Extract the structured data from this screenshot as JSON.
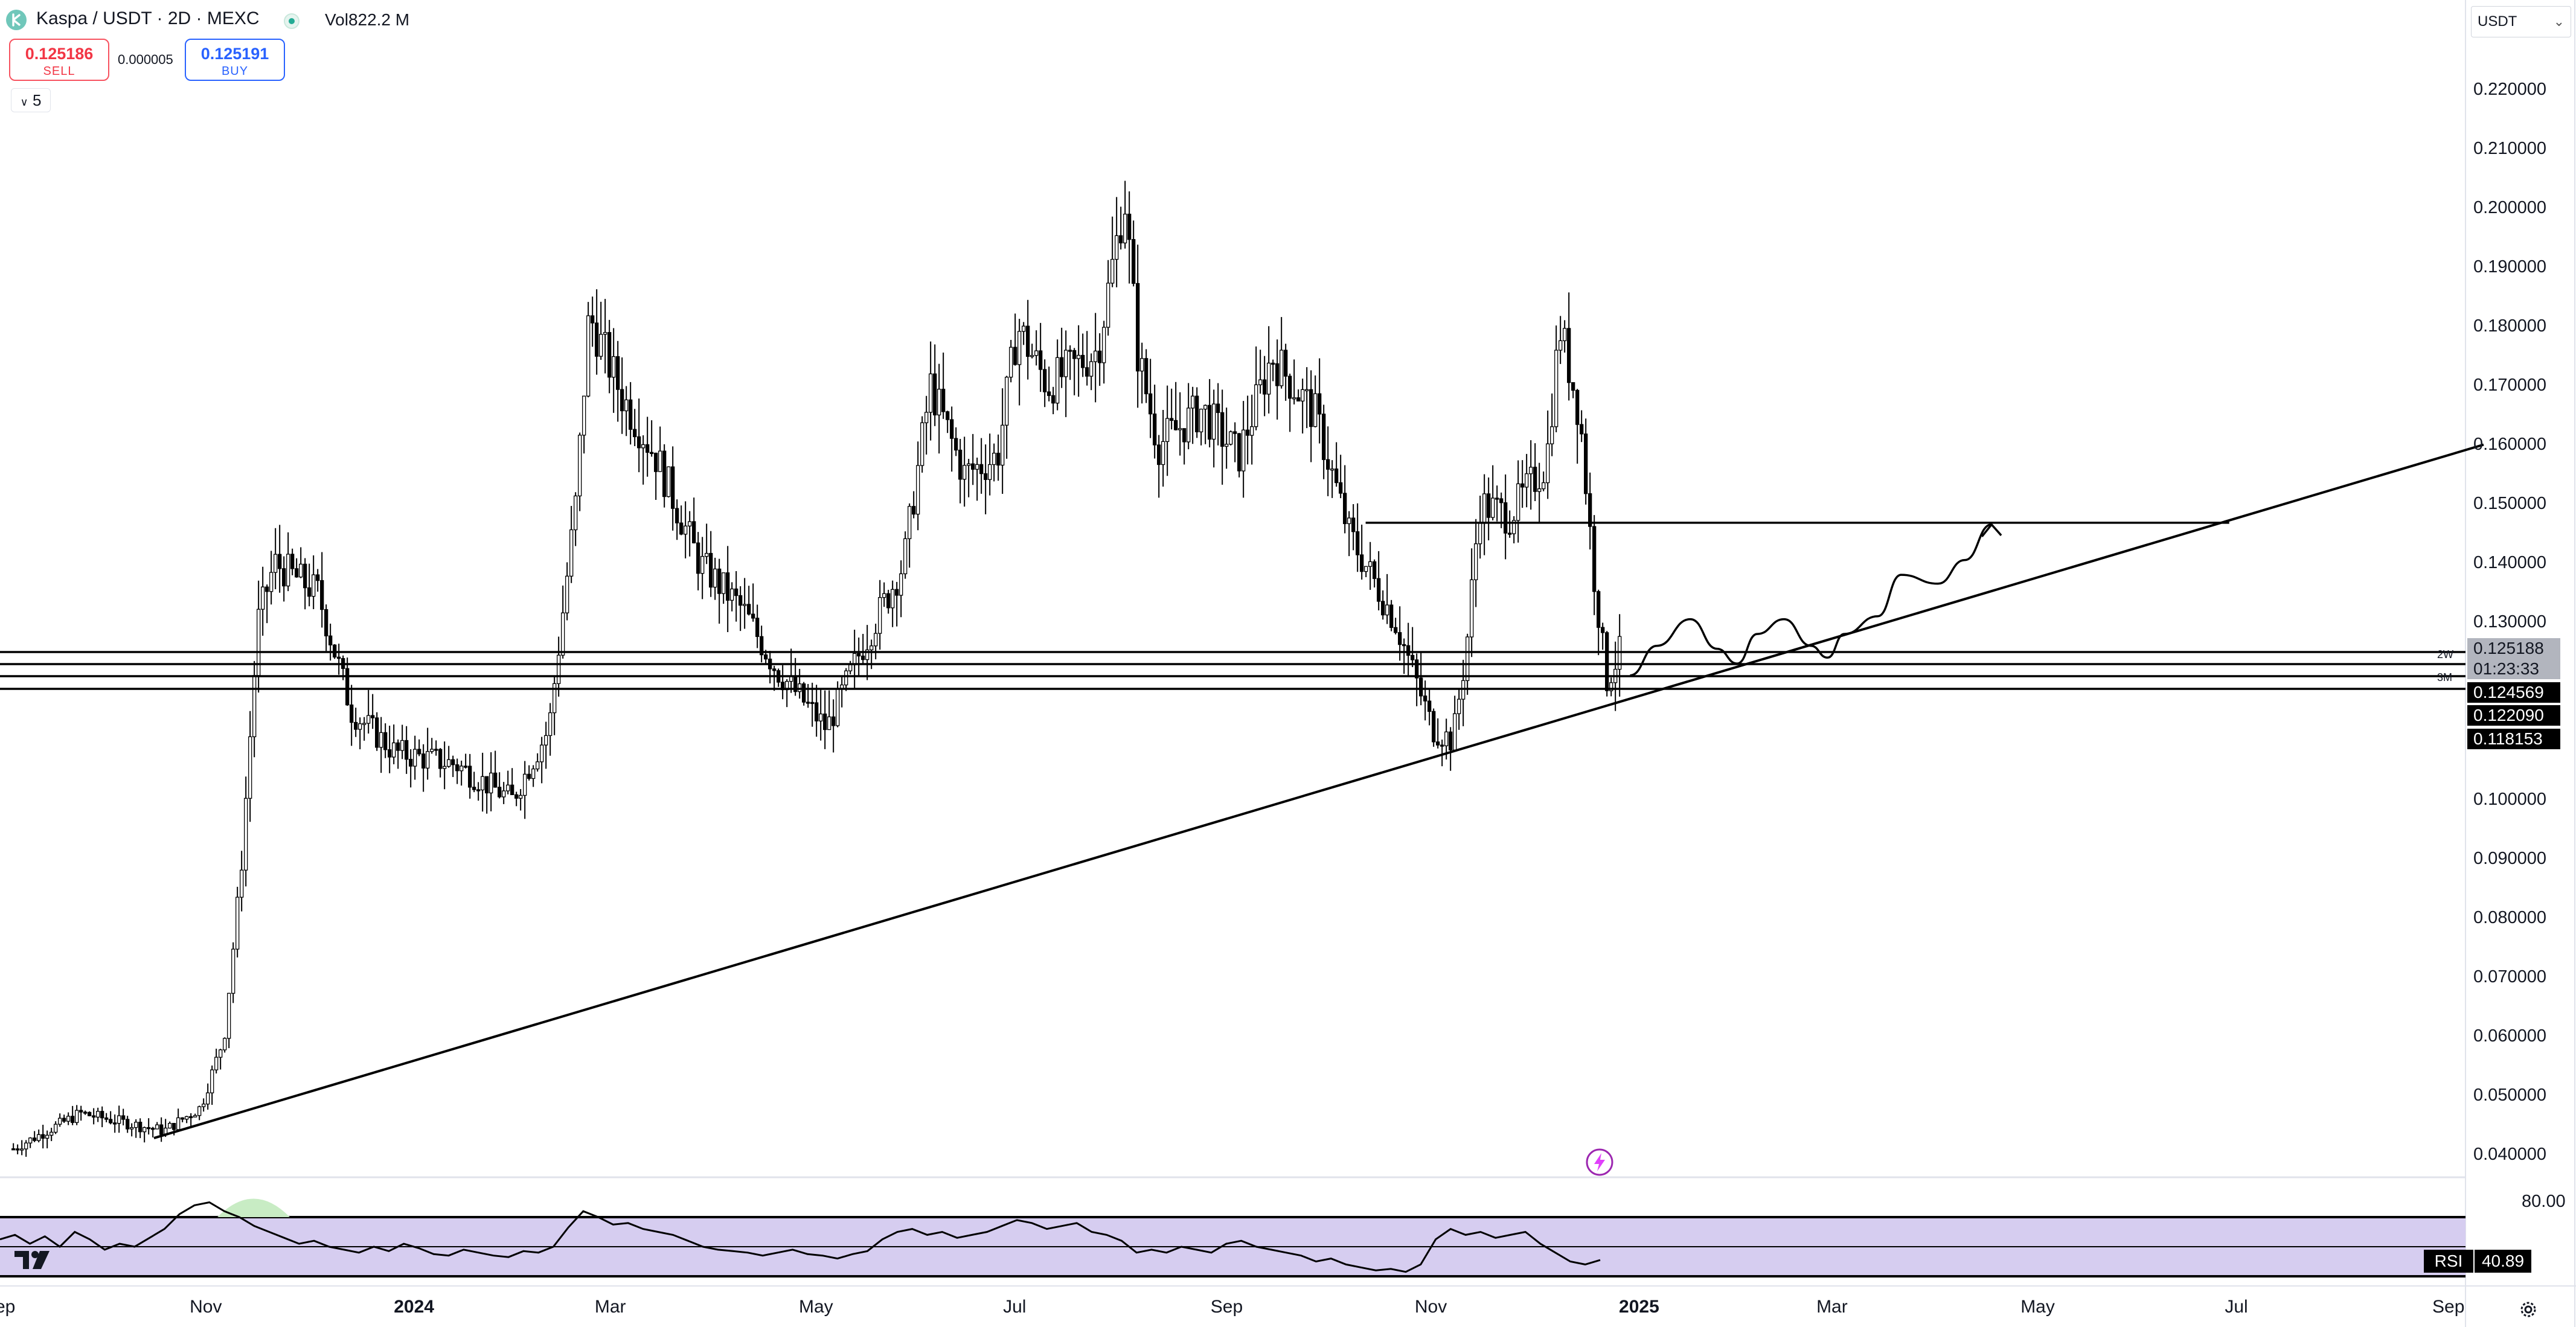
{
  "header": {
    "title": "Kaspa / USDT · 2D · MEXC",
    "volume_label": "Vol",
    "volume_value": "822.2 M"
  },
  "trade": {
    "sell_price": "0.125186",
    "sell_label": "SELL",
    "spread": "0.000005",
    "buy_price": "0.125191",
    "buy_label": "BUY"
  },
  "indicators_toggle": "5",
  "currency": "USDT",
  "price_axis": {
    "ticks": [
      "0.220000",
      "0.210000",
      "0.200000",
      "0.190000",
      "0.180000",
      "0.170000",
      "0.160000",
      "0.150000",
      "0.140000",
      "0.130000",
      "0.100000",
      "0.090000",
      "0.080000",
      "0.070000",
      "0.060000",
      "0.050000",
      "0.040000"
    ],
    "tags": {
      "current": "0.125188",
      "countdown": "01:23:33",
      "level_2w": "0.124569",
      "level_mid": "0.122090",
      "level_3m": "0.118153"
    },
    "level_labels": [
      "2W",
      "3M"
    ]
  },
  "time_axis": [
    "ep",
    "Nov",
    "2024",
    "Mar",
    "May",
    "Jul",
    "Sep",
    "Nov",
    "2025",
    "Mar",
    "May",
    "Jul",
    "Sep"
  ],
  "rsi": {
    "label": "RSI",
    "value": "40.89",
    "upper_tick": "80.00"
  },
  "colors": {
    "up": "#ffffff",
    "down": "#000000",
    "sell": "#f23645",
    "buy": "#2962ff",
    "rsi_band": "#d6cdf0",
    "rsi_overbought": "#c8ecc4",
    "alert": "#9c27b0"
  },
  "icons": {
    "symbol": "kaspa-logo-icon",
    "status": "market-open-dot",
    "alert": "lightning-alert-icon",
    "settings": "gear-icon",
    "brand": "tradingview-logo-icon"
  },
  "chart_data": {
    "type": "candlestick",
    "title": "Kaspa / USDT · 2D · MEXC",
    "x_range": [
      "2023-09",
      "2025-09"
    ],
    "ylim": [
      0.035,
      0.225
    ],
    "y_ticks": [
      0.22,
      0.21,
      0.2,
      0.19,
      0.18,
      0.17,
      0.16,
      0.15,
      0.14,
      0.13,
      0.1,
      0.09,
      0.08,
      0.07,
      0.06,
      0.05,
      0.04
    ],
    "anchors": [
      {
        "t": "2023-09-05",
        "p": 0.041
      },
      {
        "t": "2023-09-25",
        "p": 0.047
      },
      {
        "t": "2023-10-20",
        "p": 0.044
      },
      {
        "t": "2023-10-31",
        "p": 0.048
      },
      {
        "t": "2023-11-07",
        "p": 0.06
      },
      {
        "t": "2023-11-12",
        "p": 0.088
      },
      {
        "t": "2023-11-17",
        "p": 0.13
      },
      {
        "t": "2023-11-22",
        "p": 0.14
      },
      {
        "t": "2023-12-05",
        "p": 0.135
      },
      {
        "t": "2023-12-15",
        "p": 0.115
      },
      {
        "t": "2023-12-28",
        "p": 0.108
      },
      {
        "t": "2024-01-15",
        "p": 0.106
      },
      {
        "t": "2024-02-01",
        "p": 0.1
      },
      {
        "t": "2024-02-12",
        "p": 0.112
      },
      {
        "t": "2024-02-20",
        "p": 0.15
      },
      {
        "t": "2024-02-24",
        "p": 0.182
      },
      {
        "t": "2024-03-05",
        "p": 0.168
      },
      {
        "t": "2024-03-15",
        "p": 0.158
      },
      {
        "t": "2024-03-28",
        "p": 0.14
      },
      {
        "t": "2024-04-10",
        "p": 0.132
      },
      {
        "t": "2024-04-20",
        "p": 0.122
      },
      {
        "t": "2024-05-05",
        "p": 0.112
      },
      {
        "t": "2024-05-15",
        "p": 0.125
      },
      {
        "t": "2024-05-28",
        "p": 0.14
      },
      {
        "t": "2024-06-05",
        "p": 0.17
      },
      {
        "t": "2024-06-15",
        "p": 0.155
      },
      {
        "t": "2024-06-25",
        "p": 0.158
      },
      {
        "t": "2024-07-01",
        "p": 0.18
      },
      {
        "t": "2024-07-10",
        "p": 0.17
      },
      {
        "t": "2024-07-25",
        "p": 0.176
      },
      {
        "t": "2024-08-02",
        "p": 0.202
      },
      {
        "t": "2024-08-06",
        "p": 0.175
      },
      {
        "t": "2024-08-12",
        "p": 0.16
      },
      {
        "t": "2024-08-25",
        "p": 0.166
      },
      {
        "t": "2024-09-05",
        "p": 0.158
      },
      {
        "t": "2024-09-15",
        "p": 0.175
      },
      {
        "t": "2024-09-28",
        "p": 0.165
      },
      {
        "t": "2024-10-08",
        "p": 0.145
      },
      {
        "t": "2024-10-22",
        "p": 0.13
      },
      {
        "t": "2024-11-02",
        "p": 0.112
      },
      {
        "t": "2024-11-08",
        "p": 0.11
      },
      {
        "t": "2024-11-12",
        "p": 0.125
      },
      {
        "t": "2024-11-16",
        "p": 0.15
      },
      {
        "t": "2024-11-25",
        "p": 0.148
      },
      {
        "t": "2024-12-06",
        "p": 0.157
      },
      {
        "t": "2024-12-10",
        "p": 0.18
      },
      {
        "t": "2024-12-16",
        "p": 0.165
      },
      {
        "t": "2024-12-20",
        "p": 0.139
      },
      {
        "t": "2024-12-24",
        "p": 0.12
      },
      {
        "t": "2024-12-28",
        "p": 0.125
      }
    ],
    "horizontal_levels": [
      0.125188,
      0.124569,
      0.12209,
      0.118153
    ],
    "resistance_level": {
      "price": 0.1468,
      "from": "2024-10-13",
      "to": "2025-06-28"
    },
    "trendline": {
      "from": {
        "t": "2023-10-17",
        "p": 0.0428
      },
      "to": {
        "t": "2025-09-12",
        "p": 0.16
      }
    },
    "projection": [
      {
        "t": "2024-12-31",
        "p": 0.121
      },
      {
        "t": "2025-01-08",
        "p": 0.126
      },
      {
        "t": "2025-01-18",
        "p": 0.1305
      },
      {
        "t": "2025-01-26",
        "p": 0.1255
      },
      {
        "t": "2025-02-01",
        "p": 0.123
      },
      {
        "t": "2025-02-07",
        "p": 0.128
      },
      {
        "t": "2025-02-15",
        "p": 0.1305
      },
      {
        "t": "2025-02-23",
        "p": 0.126
      },
      {
        "t": "2025-02-28",
        "p": 0.124
      },
      {
        "t": "2025-03-05",
        "p": 0.128
      },
      {
        "t": "2025-03-15",
        "p": 0.131
      },
      {
        "t": "2025-03-22",
        "p": 0.138
      },
      {
        "t": "2025-04-02",
        "p": 0.1365
      },
      {
        "t": "2025-04-10",
        "p": 0.1405
      },
      {
        "t": "2025-04-18",
        "p": 0.1465
      }
    ],
    "rsi": {
      "value": 40.89,
      "upper": 70,
      "lower": 30,
      "samples": [
        55,
        58,
        52,
        57,
        50,
        60,
        55,
        48,
        52,
        50,
        56,
        62,
        72,
        78,
        80,
        74,
        70,
        64,
        60,
        56,
        52,
        54,
        50,
        48,
        46,
        50,
        47,
        52,
        49,
        45,
        44,
        48,
        46,
        44,
        43,
        47,
        46,
        50,
        63,
        74,
        70,
        65,
        66,
        62,
        60,
        58,
        54,
        50,
        48,
        47,
        46,
        44,
        46,
        48,
        45,
        44,
        42,
        45,
        47,
        55,
        60,
        62,
        58,
        60,
        56,
        58,
        60,
        64,
        68,
        66,
        62,
        64,
        66,
        60,
        58,
        54,
        46,
        48,
        46,
        50,
        48,
        46,
        52,
        54,
        50,
        48,
        46,
        44,
        40,
        42,
        38,
        36,
        34,
        35,
        33,
        38,
        55,
        62,
        58,
        60,
        56,
        58,
        60,
        52,
        46,
        40,
        38,
        41
      ]
    }
  }
}
